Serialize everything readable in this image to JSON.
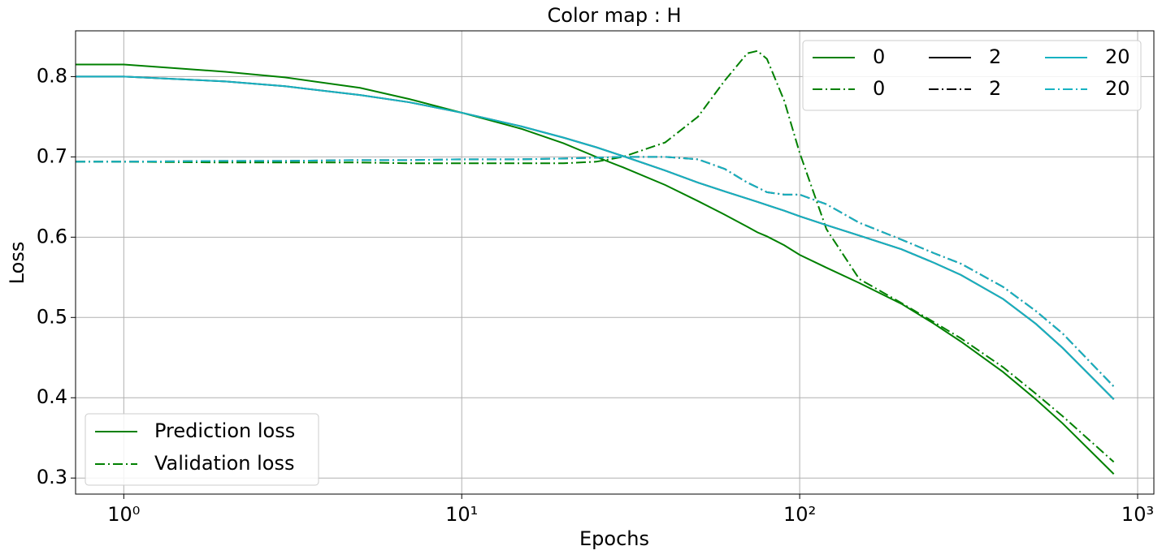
{
  "chart_data": {
    "type": "line",
    "title": "Color map : H",
    "xlabel": "Epochs",
    "ylabel": "Loss",
    "log_x": true,
    "grid": true,
    "legend": "upper right",
    "style_legend_position": "lower left",
    "xlim": [
      0.72,
      1117
    ],
    "ylim": [
      0.28,
      0.857
    ],
    "xticks": [
      {
        "value": 1,
        "label": "10⁰"
      },
      {
        "value": 10,
        "label": "10¹"
      },
      {
        "value": 100,
        "label": "10²"
      },
      {
        "value": 1000,
        "label": "10³"
      }
    ],
    "yticks": [
      0.3,
      0.4,
      0.5,
      0.6,
      0.7,
      0.8
    ],
    "x": [
      0.72,
      1,
      2,
      3,
      5,
      7,
      10,
      15,
      20,
      25,
      30,
      40,
      50,
      60,
      70,
      75,
      80,
      90,
      100,
      120,
      150,
      200,
      250,
      300,
      400,
      500,
      600,
      850
    ],
    "series": [
      {
        "name": "0",
        "color": "#008000",
        "style": "solid",
        "values": [
          0.815,
          0.815,
          0.806,
          0.799,
          0.786,
          0.772,
          0.755,
          0.735,
          0.717,
          0.7,
          0.687,
          0.665,
          0.645,
          0.628,
          0.613,
          0.606,
          0.601,
          0.59,
          0.578,
          0.562,
          0.543,
          0.517,
          0.492,
          0.47,
          0.432,
          0.398,
          0.368,
          0.305
        ]
      },
      {
        "name": "0",
        "color": "#008000",
        "style": "dashdot",
        "values": [
          0.694,
          0.694,
          0.693,
          0.693,
          0.693,
          0.692,
          0.692,
          0.692,
          0.692,
          0.694,
          0.7,
          0.718,
          0.75,
          0.795,
          0.829,
          0.832,
          0.822,
          0.77,
          0.705,
          0.61,
          0.548,
          0.518,
          0.494,
          0.474,
          0.438,
          0.405,
          0.377,
          0.32
        ]
      },
      {
        "name": "2",
        "color": "#000000",
        "style": "solid",
        "values": [
          0.8,
          0.8,
          0.794,
          0.788,
          0.777,
          0.768,
          0.755,
          0.738,
          0.724,
          0.712,
          0.701,
          0.683,
          0.668,
          0.657,
          0.648,
          0.644,
          0.64,
          0.633,
          0.626,
          0.615,
          0.602,
          0.585,
          0.568,
          0.553,
          0.523,
          0.492,
          0.462,
          0.398
        ]
      },
      {
        "name": "2",
        "color": "#000000",
        "style": "dashdot",
        "values": [
          0.694,
          0.694,
          0.695,
          0.695,
          0.696,
          0.696,
          0.697,
          0.697,
          0.698,
          0.699,
          0.7,
          0.7,
          0.697,
          0.685,
          0.668,
          0.662,
          0.656,
          0.653,
          0.653,
          0.641,
          0.618,
          0.597,
          0.58,
          0.567,
          0.538,
          0.508,
          0.48,
          0.414
        ]
      },
      {
        "name": "20",
        "color": "#17b2c2",
        "style": "solid",
        "values": [
          0.8,
          0.8,
          0.794,
          0.788,
          0.777,
          0.768,
          0.755,
          0.738,
          0.724,
          0.712,
          0.701,
          0.683,
          0.668,
          0.657,
          0.648,
          0.644,
          0.64,
          0.633,
          0.626,
          0.615,
          0.602,
          0.585,
          0.568,
          0.553,
          0.523,
          0.492,
          0.462,
          0.398
        ]
      },
      {
        "name": "20",
        "color": "#17b2c2",
        "style": "dashdot",
        "values": [
          0.694,
          0.694,
          0.695,
          0.695,
          0.696,
          0.696,
          0.697,
          0.697,
          0.698,
          0.699,
          0.7,
          0.7,
          0.697,
          0.685,
          0.668,
          0.662,
          0.656,
          0.653,
          0.653,
          0.641,
          0.618,
          0.597,
          0.58,
          0.567,
          0.538,
          0.508,
          0.48,
          0.414
        ]
      }
    ],
    "style_legend": [
      {
        "name": "Prediction loss",
        "style": "solid",
        "color": "#008000"
      },
      {
        "name": "Validation loss",
        "style": "dashdot",
        "color": "#008000"
      }
    ]
  }
}
